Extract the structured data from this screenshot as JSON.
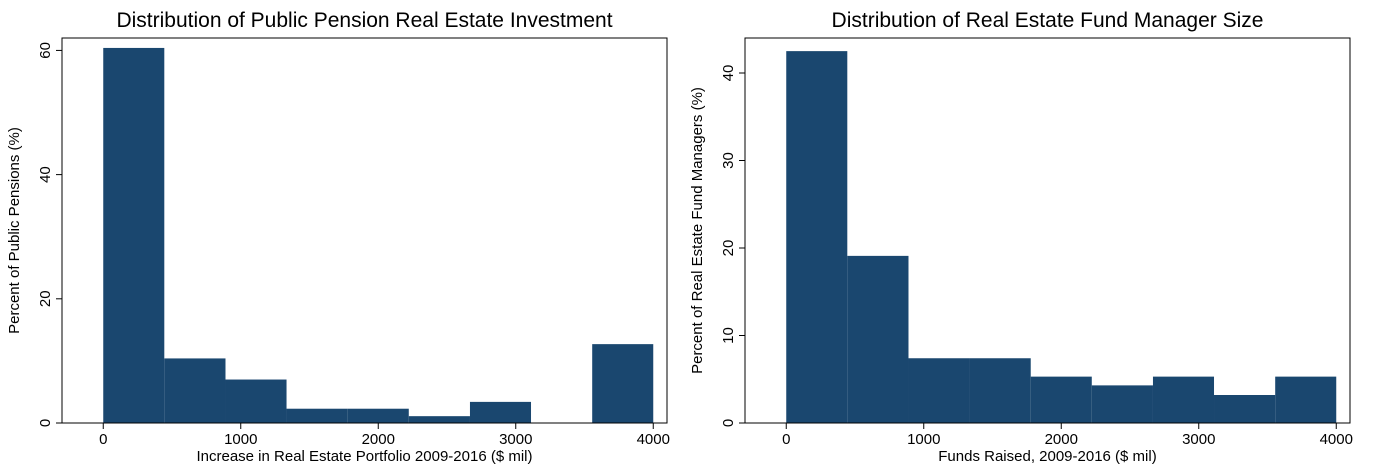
{
  "colors": {
    "bar": "#1a476f",
    "axis": "#000000",
    "background": "#ffffff"
  },
  "chart_data": [
    {
      "type": "bar",
      "title": "Distribution of Public Pension Real Estate Investment",
      "xlabel": "Increase in Real Estate Portfolio 2009-2016 ($ mil)",
      "ylabel": "Percent of Public Pensions (%)",
      "xlim": [
        -300,
        4100
      ],
      "ylim": [
        0,
        62
      ],
      "xticks": [
        0,
        1000,
        2000,
        3000,
        4000
      ],
      "yticks": [
        0,
        20,
        40,
        60
      ],
      "bin_edges": [
        0,
        444,
        889,
        1333,
        1778,
        2222,
        2667,
        3111,
        3556,
        4000
      ],
      "values": [
        60.4,
        10.4,
        7.0,
        2.3,
        2.3,
        1.1,
        3.4,
        0,
        12.7
      ],
      "grid": false,
      "legend": "none"
    },
    {
      "type": "bar",
      "title": "Distribution of Real Estate Fund Manager Size",
      "xlabel": "Funds Raised, 2009-2016 ($ mil)",
      "ylabel": "Percent of Real Estate Fund Managers (%)",
      "xlim": [
        -300,
        4100
      ],
      "ylim": [
        0,
        44
      ],
      "xticks": [
        0,
        1000,
        2000,
        3000,
        4000
      ],
      "yticks": [
        0,
        10,
        20,
        30,
        40
      ],
      "bin_edges": [
        0,
        444,
        889,
        1333,
        1778,
        2222,
        2667,
        3111,
        3556,
        4000
      ],
      "values": [
        42.5,
        19.1,
        7.4,
        7.4,
        5.3,
        4.3,
        5.3,
        3.2,
        5.3
      ],
      "grid": false,
      "legend": "none"
    }
  ]
}
